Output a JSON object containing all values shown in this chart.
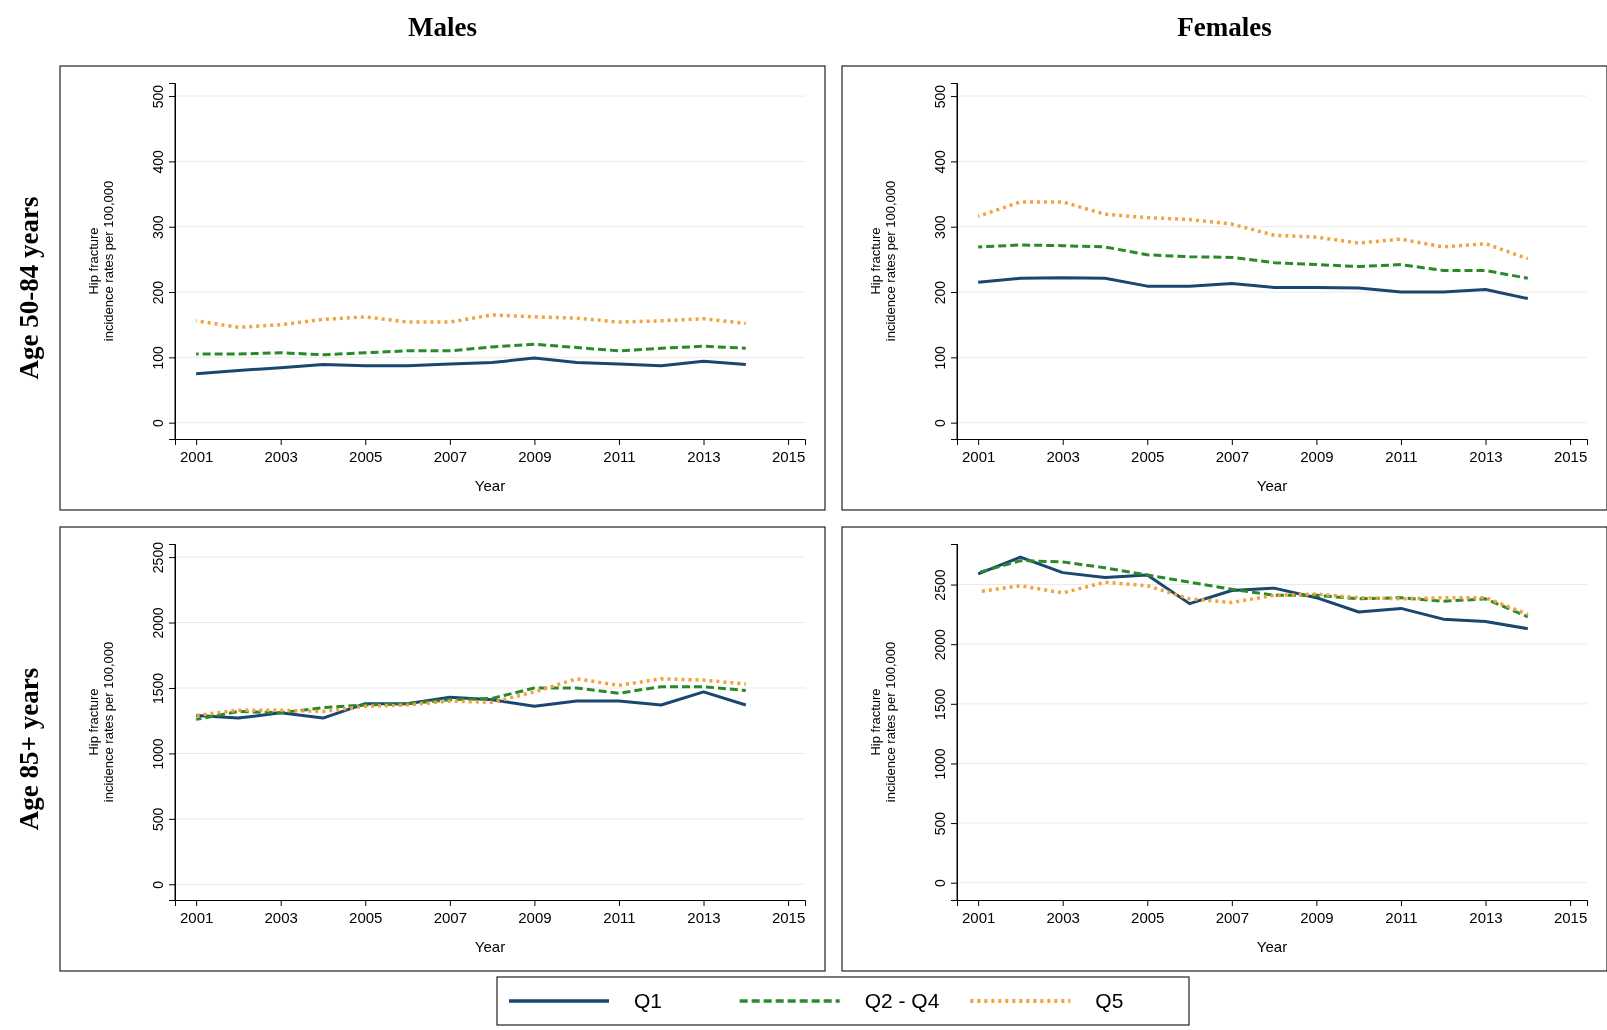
{
  "chart_data": [
    {
      "type": "line",
      "title": "Males",
      "subtitle": "Age 50-84 years",
      "xlabel": "Year",
      "ylabel": "Hip fracture\nincidence rates per 100,000",
      "x": [
        2001,
        2002,
        2003,
        2004,
        2005,
        2006,
        2007,
        2008,
        2009,
        2010,
        2011,
        2012,
        2013,
        2014
      ],
      "xlim": [
        2000.5,
        2015.4
      ],
      "xticks": [
        2001,
        2003,
        2005,
        2007,
        2009,
        2011,
        2013,
        2015
      ],
      "ylim": [
        -25,
        520
      ],
      "yticks": [
        0,
        100,
        200,
        300,
        400,
        500
      ],
      "grid": "y",
      "legend": "bottom",
      "series": [
        {
          "name": "Q1",
          "color": "#1a476f",
          "line_style": "solid",
          "values": [
            75,
            80,
            84,
            89,
            87,
            87,
            90,
            92,
            99,
            92,
            90,
            87,
            94,
            89
          ]
        },
        {
          "name": "Q2 - Q4",
          "color": "#2a8a2a",
          "line_style": "dashed",
          "values": [
            105,
            105,
            107,
            104,
            107,
            110,
            110,
            116,
            120,
            115,
            110,
            114,
            117,
            114
          ]
        },
        {
          "name": "Q5",
          "color": "#f2a13c",
          "line_style": "dotted",
          "values": [
            156,
            146,
            150,
            158,
            162,
            154,
            154,
            165,
            162,
            160,
            154,
            156,
            159,
            152
          ]
        }
      ]
    },
    {
      "type": "line",
      "title": "Females",
      "xlabel": "Year",
      "ylabel": "Hip fracture\nincidence rates per 100,000",
      "x": [
        2001,
        2002,
        2003,
        2004,
        2005,
        2006,
        2007,
        2008,
        2009,
        2010,
        2011,
        2012,
        2013,
        2014
      ],
      "xlim": [
        2000.5,
        2015.4
      ],
      "xticks": [
        2001,
        2003,
        2005,
        2007,
        2009,
        2011,
        2013,
        2015
      ],
      "ylim": [
        -25,
        520
      ],
      "yticks": [
        0,
        100,
        200,
        300,
        400,
        500
      ],
      "grid": "y",
      "series": [
        {
          "color": "#1a476f",
          "line_style": "solid",
          "values": [
            215,
            221,
            222,
            221,
            209,
            209,
            213,
            207,
            207,
            206,
            200,
            200,
            204,
            190
          ]
        },
        {
          "color": "#2a8a2a",
          "line_style": "dashed",
          "values": [
            269,
            272,
            271,
            269,
            257,
            254,
            253,
            245,
            242,
            239,
            242,
            233,
            233,
            221
          ]
        },
        {
          "color": "#f2a13c",
          "line_style": "dotted",
          "values": [
            316,
            338,
            338,
            319,
            314,
            311,
            304,
            287,
            284,
            275,
            281,
            269,
            274,
            251
          ]
        }
      ]
    },
    {
      "type": "line",
      "subtitle": "Age 85+ years",
      "xlabel": "Year",
      "ylabel": "Hip fracture\nincidence rates per 100,000",
      "x": [
        2001,
        2002,
        2003,
        2004,
        2005,
        2006,
        2007,
        2008,
        2009,
        2010,
        2011,
        2012,
        2013,
        2014
      ],
      "xlim": [
        2000.5,
        2015.4
      ],
      "xticks": [
        2001,
        2003,
        2005,
        2007,
        2009,
        2011,
        2013,
        2015
      ],
      "ylim": [
        -120,
        2600
      ],
      "yticks": [
        0,
        500,
        1000,
        1500,
        2000,
        2500
      ],
      "grid": "y",
      "series": [
        {
          "color": "#1a476f",
          "line_style": "solid",
          "values": [
            1290,
            1270,
            1310,
            1270,
            1380,
            1380,
            1430,
            1410,
            1360,
            1400,
            1400,
            1370,
            1470,
            1370
          ]
        },
        {
          "color": "#2a8a2a",
          "line_style": "dashed",
          "values": [
            1260,
            1320,
            1310,
            1350,
            1370,
            1380,
            1410,
            1420,
            1500,
            1500,
            1460,
            1510,
            1510,
            1480
          ]
        },
        {
          "color": "#f2a13c",
          "line_style": "dotted",
          "values": [
            1290,
            1330,
            1330,
            1320,
            1360,
            1370,
            1400,
            1390,
            1470,
            1570,
            1520,
            1570,
            1560,
            1530
          ]
        }
      ]
    },
    {
      "type": "line",
      "xlabel": "Year",
      "ylabel": "Hip fracture\nincidence rates per 100,000",
      "x": [
        2001,
        2002,
        2003,
        2004,
        2005,
        2006,
        2007,
        2008,
        2009,
        2010,
        2011,
        2012,
        2013,
        2014
      ],
      "xlim": [
        2000.5,
        2015.4
      ],
      "xticks": [
        2001,
        2003,
        2005,
        2007,
        2009,
        2011,
        2013,
        2015
      ],
      "ylim": [
        -145,
        2840
      ],
      "yticks": [
        0,
        500,
        1000,
        1500,
        2000,
        2500
      ],
      "grid": "y",
      "series": [
        {
          "color": "#1a476f",
          "line_style": "solid",
          "values": [
            2590,
            2730,
            2600,
            2560,
            2580,
            2340,
            2450,
            2470,
            2390,
            2270,
            2300,
            2210,
            2190,
            2130
          ]
        },
        {
          "color": "#2a8a2a",
          "line_style": "dashed",
          "values": [
            2600,
            2700,
            2690,
            2640,
            2580,
            2520,
            2460,
            2410,
            2410,
            2380,
            2390,
            2360,
            2380,
            2230
          ]
        },
        {
          "color": "#f2a13c",
          "line_style": "dotted",
          "values": [
            2440,
            2490,
            2430,
            2520,
            2490,
            2380,
            2350,
            2410,
            2420,
            2390,
            2380,
            2390,
            2390,
            2250
          ]
        }
      ]
    }
  ]
}
